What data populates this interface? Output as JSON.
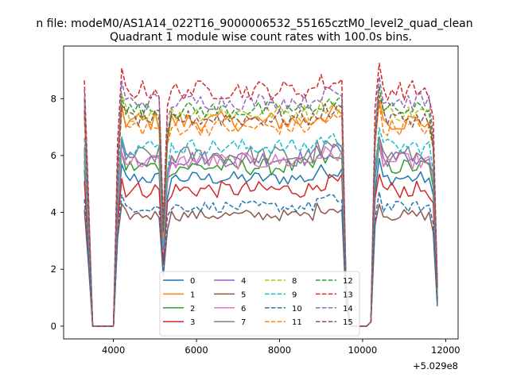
{
  "chart_data": {
    "type": "line",
    "suptitle": "n file: modeM0/AS1A14_022T16_9000006532_55165cztM0_level2_quad_clean",
    "title": "Quadrant 1 module wise count rates with 100.0s bins.",
    "offset_label": "+5.029e8",
    "xlim": [
      2800,
      12300
    ],
    "ylim": [
      -0.45,
      9.85
    ],
    "x_ticks": [
      4000,
      6000,
      8000,
      10000,
      12000
    ],
    "x_tick_labels": [
      "4000",
      "6000",
      "8000",
      "10000",
      "12000"
    ],
    "y_ticks": [
      0,
      2,
      4,
      6,
      8
    ],
    "y_tick_labels": [
      "0",
      "2",
      "4",
      "6",
      "8"
    ],
    "segments": [
      [
        3300,
        3500
      ],
      [
        3500,
        4000
      ],
      [
        4000,
        5200
      ],
      [
        5200,
        5300
      ],
      [
        5300,
        9500
      ],
      [
        9500,
        9600
      ],
      [
        9600,
        10200
      ],
      [
        10200,
        10400
      ],
      [
        10400,
        11800
      ]
    ],
    "series": [
      {
        "name": "0",
        "color": "#1f77b4",
        "dash": "solid",
        "level": 5.2,
        "jitter": 0.25
      },
      {
        "name": "1",
        "color": "#ff7f0e",
        "dash": "solid",
        "level": 7.2,
        "jitter": 0.35
      },
      {
        "name": "2",
        "color": "#2ca02c",
        "dash": "solid",
        "level": 5.6,
        "jitter": 0.3
      },
      {
        "name": "3",
        "color": "#d62728",
        "dash": "solid",
        "level": 4.8,
        "jitter": 0.3
      },
      {
        "name": "4",
        "color": "#9467bd",
        "dash": "solid",
        "level": 5.9,
        "jitter": 0.3
      },
      {
        "name": "5",
        "color": "#8c564b",
        "dash": "solid",
        "level": 3.9,
        "jitter": 0.2
      },
      {
        "name": "6",
        "color": "#e377c2",
        "dash": "solid",
        "level": 5.8,
        "jitter": 0.3
      },
      {
        "name": "7",
        "color": "#7f7f7f",
        "dash": "solid",
        "level": 6.0,
        "jitter": 0.35
      },
      {
        "name": "8",
        "color": "#bcbd22",
        "dash": "dashed",
        "level": 7.5,
        "jitter": 0.3
      },
      {
        "name": "9",
        "color": "#17becf",
        "dash": "dashed",
        "level": 6.3,
        "jitter": 0.3
      },
      {
        "name": "10",
        "color": "#1f77b4",
        "dash": "dashed",
        "level": 4.2,
        "jitter": 0.2
      },
      {
        "name": "11",
        "color": "#ff7f0e",
        "dash": "dashed",
        "level": 7.0,
        "jitter": 0.3
      },
      {
        "name": "12",
        "color": "#2ca02c",
        "dash": "dashed",
        "level": 7.6,
        "jitter": 0.3
      },
      {
        "name": "13",
        "color": "#d62728",
        "dash": "dashed",
        "level": 8.3,
        "jitter": 0.35
      },
      {
        "name": "14",
        "color": "#9467bd",
        "dash": "dashed",
        "level": 7.9,
        "jitter": 0.3
      },
      {
        "name": "15",
        "color": "#8c564b",
        "dash": "dashed",
        "level": 7.3,
        "jitter": 0.3
      }
    ]
  }
}
